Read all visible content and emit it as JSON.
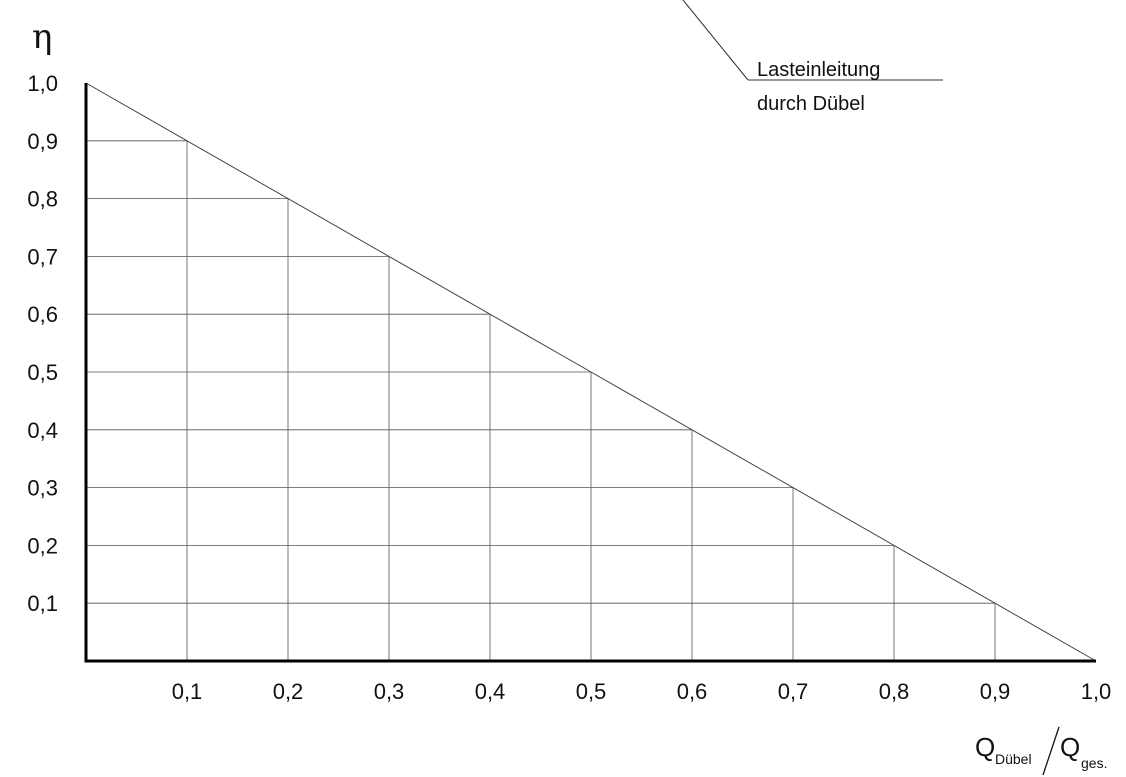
{
  "chart_data": {
    "type": "line",
    "ylabel": "η",
    "xlabel": {
      "num_main": "Q",
      "num_sub": "Dübel",
      "den_main": "Q",
      "den_sub": "ges."
    },
    "xlim": [
      0,
      1.0
    ],
    "ylim": [
      0,
      1.0
    ],
    "grid": true,
    "x_ticks": [
      "0,1",
      "0,2",
      "0,3",
      "0,4",
      "0,5",
      "0,6",
      "0,7",
      "0,8",
      "0,9",
      "1,0"
    ],
    "y_ticks": [
      "1,0",
      "0,9",
      "0,8",
      "0,7",
      "0,6",
      "0,5",
      "0,4",
      "0,3",
      "0,2",
      "0,1"
    ],
    "x": [
      0.0,
      0.1,
      0.2,
      0.3,
      0.4,
      0.5,
      0.6,
      0.7,
      0.8,
      0.9,
      1.0
    ],
    "y": [
      1.0,
      0.9,
      0.8,
      0.7,
      0.6,
      0.5,
      0.4,
      0.3,
      0.2,
      0.1,
      0.0
    ],
    "annotation": {
      "line1": "Lasteinleitung",
      "line2": "durch Dübel"
    }
  },
  "colors": {
    "axis": "#000000",
    "grid": "#555555",
    "line": "#444444"
  }
}
